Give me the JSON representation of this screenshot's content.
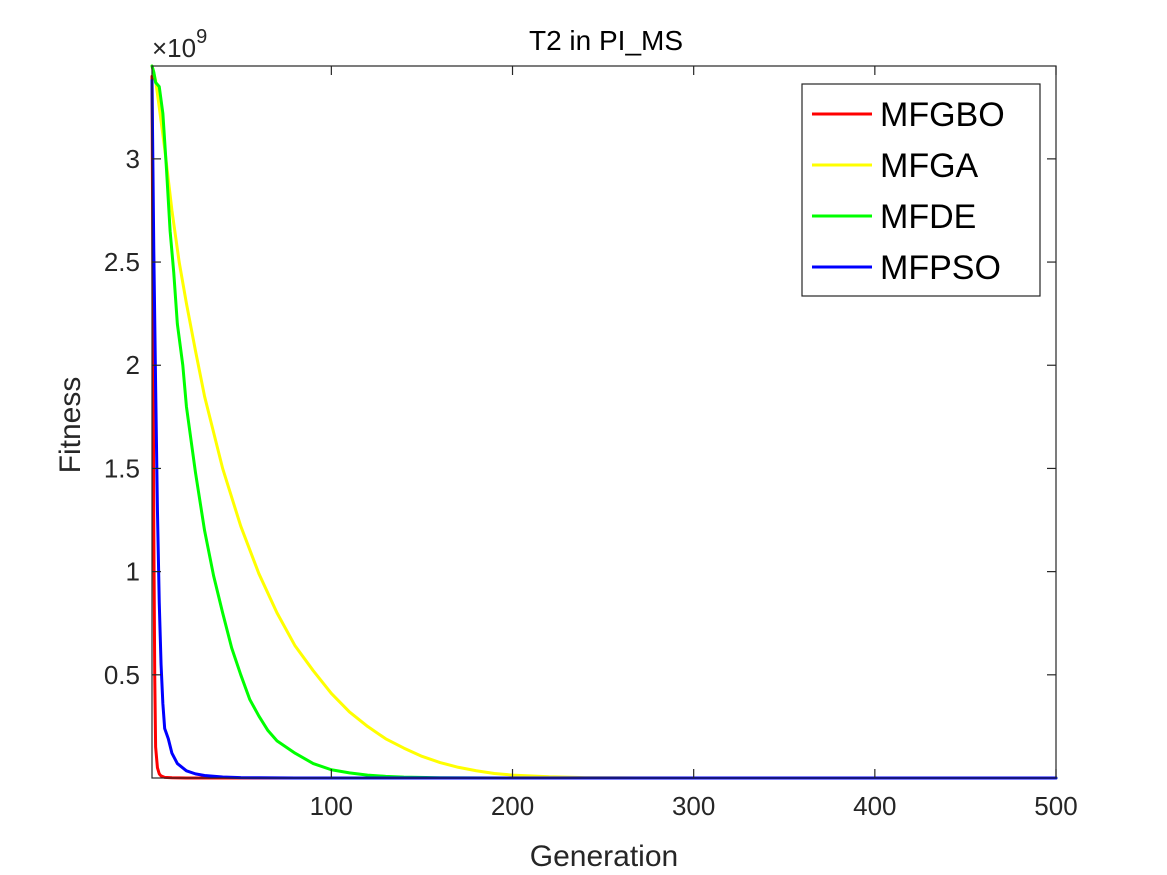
{
  "chart_data": {
    "type": "line",
    "title": "T2 in PI_MS",
    "xlabel": "Generation",
    "ylabel": "Fitness",
    "y_exponent_base": "×10",
    "y_exponent_power": "9",
    "xlim": [
      1,
      500
    ],
    "ylim": [
      0,
      3.45
    ],
    "x_ticks": [
      100,
      200,
      300,
      400,
      500
    ],
    "x_tick_labels": [
      "100",
      "200",
      "300",
      "400",
      "500"
    ],
    "y_ticks": [
      0.5,
      1,
      1.5,
      2,
      2.5,
      3
    ],
    "y_tick_labels": [
      "0.5",
      "1",
      "1.5",
      "2",
      "2.5",
      "3"
    ],
    "legend_position": "top-right",
    "grid": false,
    "series": [
      {
        "name": "MFGBO",
        "color": "#ff0000",
        "points": [
          [
            1,
            3.4
          ],
          [
            1.5,
            2.4
          ],
          [
            2,
            1.2
          ],
          [
            2.5,
            0.5
          ],
          [
            3,
            0.15
          ],
          [
            4,
            0.05
          ],
          [
            5,
            0.02
          ],
          [
            6,
            0.01
          ],
          [
            8,
            0.003
          ],
          [
            12,
            0.001
          ],
          [
            20,
            0
          ],
          [
            500,
            0
          ]
        ]
      },
      {
        "name": "MFGA",
        "color": "#ffff00",
        "points": [
          [
            1,
            3.45
          ],
          [
            3,
            3.38
          ],
          [
            5,
            3.25
          ],
          [
            8,
            3.05
          ],
          [
            12,
            2.75
          ],
          [
            16,
            2.5
          ],
          [
            20,
            2.3
          ],
          [
            25,
            2.07
          ],
          [
            30,
            1.85
          ],
          [
            40,
            1.5
          ],
          [
            50,
            1.22
          ],
          [
            60,
            0.99
          ],
          [
            70,
            0.8
          ],
          [
            80,
            0.64
          ],
          [
            90,
            0.52
          ],
          [
            100,
            0.41
          ],
          [
            110,
            0.32
          ],
          [
            120,
            0.25
          ],
          [
            130,
            0.19
          ],
          [
            140,
            0.145
          ],
          [
            150,
            0.105
          ],
          [
            160,
            0.075
          ],
          [
            170,
            0.052
          ],
          [
            180,
            0.035
          ],
          [
            190,
            0.022
          ],
          [
            200,
            0.014
          ],
          [
            220,
            0.006
          ],
          [
            240,
            0.002
          ],
          [
            260,
            0.001
          ],
          [
            300,
            0
          ],
          [
            500,
            0
          ]
        ]
      },
      {
        "name": "MFDE",
        "color": "#00ff00",
        "points": [
          [
            1,
            3.45
          ],
          [
            2,
            3.42
          ],
          [
            3,
            3.37
          ],
          [
            5,
            3.35
          ],
          [
            7,
            3.22
          ],
          [
            9,
            2.95
          ],
          [
            11,
            2.65
          ],
          [
            13,
            2.45
          ],
          [
            15,
            2.2
          ],
          [
            18,
            2.0
          ],
          [
            20,
            1.8
          ],
          [
            25,
            1.48
          ],
          [
            30,
            1.2
          ],
          [
            35,
            0.98
          ],
          [
            40,
            0.8
          ],
          [
            45,
            0.63
          ],
          [
            50,
            0.5
          ],
          [
            55,
            0.38
          ],
          [
            60,
            0.3
          ],
          [
            65,
            0.23
          ],
          [
            70,
            0.18
          ],
          [
            80,
            0.12
          ],
          [
            90,
            0.07
          ],
          [
            100,
            0.04
          ],
          [
            110,
            0.025
          ],
          [
            120,
            0.014
          ],
          [
            130,
            0.008
          ],
          [
            140,
            0.004
          ],
          [
            160,
            0.001
          ],
          [
            200,
            0
          ],
          [
            500,
            0
          ]
        ]
      },
      {
        "name": "MFPSO",
        "color": "#0000ff",
        "points": [
          [
            1,
            3.38
          ],
          [
            2,
            2.55
          ],
          [
            3,
            1.9
          ],
          [
            4,
            1.3
          ],
          [
            5,
            0.85
          ],
          [
            6,
            0.55
          ],
          [
            7,
            0.36
          ],
          [
            8,
            0.24
          ],
          [
            10,
            0.19
          ],
          [
            12,
            0.12
          ],
          [
            15,
            0.07
          ],
          [
            20,
            0.035
          ],
          [
            25,
            0.02
          ],
          [
            30,
            0.012
          ],
          [
            40,
            0.005
          ],
          [
            50,
            0.002
          ],
          [
            60,
            0.001
          ],
          [
            80,
            0
          ],
          [
            500,
            0
          ]
        ]
      }
    ]
  }
}
